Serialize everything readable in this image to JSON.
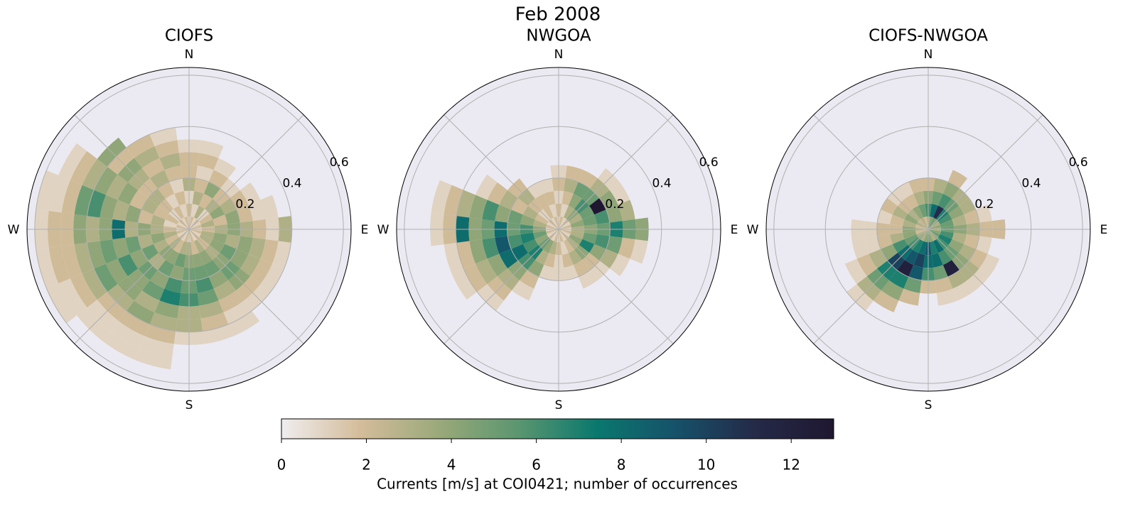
{
  "figure": {
    "title": "Feb 2008",
    "colorbar": {
      "label": "Currents [m/s] at COI0421; number of occurrences",
      "clim": [
        0,
        13
      ],
      "ticks": [
        0,
        2,
        4,
        6,
        8,
        10,
        12
      ],
      "colormap": [
        "#efedef",
        "#d4bc9a",
        "#9aa97a",
        "#5b9670",
        "#0a786e",
        "#16516a",
        "#242a48",
        "#1f1730"
      ]
    }
  },
  "chart_data": [
    {
      "type": "polar-histogram",
      "title": "CIOFS",
      "rlim": [
        0,
        0.63
      ],
      "rticks": [
        0.2,
        0.4,
        0.6
      ],
      "theta_grid": [
        0,
        45,
        90,
        135,
        180,
        225,
        270,
        315
      ],
      "theta_labels": [
        {
          "value": 0,
          "label": "N"
        },
        {
          "value": 90,
          "label": "E"
        },
        {
          "value": 180,
          "label": "S"
        },
        {
          "value": 270,
          "label": "W"
        }
      ],
      "directions": [
        0,
        15,
        30,
        45,
        60,
        75,
        90,
        105,
        120,
        135,
        150,
        165,
        180,
        195,
        210,
        225,
        240,
        255,
        270,
        285,
        300,
        315,
        330,
        345
      ],
      "speed_bins": [
        0,
        0.05,
        0.1,
        0.15,
        0.2,
        0.25,
        0.3,
        0.35,
        0.4,
        0.45,
        0.5,
        0.55,
        0.6
      ],
      "counts": [
        [
          1,
          2,
          1,
          3,
          2,
          2,
          1,
          null,
          null,
          null,
          null,
          null
        ],
        [
          2,
          1,
          3,
          2,
          1,
          2,
          1,
          null,
          null,
          null,
          null,
          null
        ],
        [
          1,
          3,
          2,
          4,
          2,
          1,
          null,
          null,
          null,
          null,
          null,
          null
        ],
        [
          2,
          1,
          3,
          2,
          1,
          null,
          null,
          null,
          null,
          null,
          null,
          null
        ],
        [
          1,
          2,
          4,
          3,
          2,
          1,
          null,
          null,
          null,
          null,
          null,
          null
        ],
        [
          2,
          3,
          2,
          4,
          2,
          1,
          1,
          null,
          null,
          null,
          null,
          null
        ],
        [
          1,
          2,
          3,
          4,
          3,
          2,
          1,
          3,
          null,
          null,
          null,
          null
        ],
        [
          2,
          3,
          4,
          3,
          4,
          3,
          2,
          1,
          null,
          null,
          null,
          null
        ],
        [
          1,
          3,
          4,
          5,
          4,
          3,
          2,
          1,
          null,
          null,
          null,
          null
        ],
        [
          2,
          2,
          3,
          4,
          5,
          4,
          2,
          1,
          null,
          null,
          null,
          null
        ],
        [
          1,
          3,
          4,
          5,
          4,
          3,
          2,
          1,
          1,
          null,
          null,
          null
        ],
        [
          2,
          2,
          4,
          5,
          6,
          5,
          3,
          2,
          1,
          null,
          null,
          null
        ],
        [
          1,
          3,
          4,
          5,
          5,
          6,
          3,
          3,
          1,
          null,
          null,
          null
        ],
        [
          2,
          3,
          5,
          4,
          6,
          7,
          4,
          3,
          2,
          1,
          1,
          null
        ],
        [
          1,
          2,
          4,
          5,
          4,
          5,
          3,
          4,
          2,
          1,
          1,
          null
        ],
        [
          2,
          3,
          4,
          3,
          5,
          4,
          4,
          3,
          2,
          1,
          1,
          null
        ],
        [
          1,
          2,
          3,
          5,
          4,
          6,
          4,
          5,
          3,
          2,
          1,
          1
        ],
        [
          2,
          3,
          4,
          3,
          5,
          4,
          5,
          4,
          3,
          2,
          2,
          1
        ],
        [
          1,
          2,
          3,
          4,
          3,
          8,
          4,
          3,
          4,
          2,
          2,
          1
        ],
        [
          2,
          1,
          3,
          2,
          4,
          3,
          4,
          6,
          5,
          2,
          1,
          1
        ],
        [
          1,
          2,
          2,
          3,
          2,
          4,
          3,
          4,
          3,
          2,
          1,
          null
        ],
        [
          2,
          1,
          2,
          3,
          2,
          3,
          4,
          2,
          4,
          null,
          null,
          null
        ],
        [
          1,
          2,
          1,
          2,
          3,
          2,
          3,
          2,
          null,
          null,
          null,
          null
        ],
        [
          2,
          1,
          2,
          1,
          2,
          3,
          2,
          1,
          null,
          null,
          null,
          null
        ]
      ]
    },
    {
      "type": "polar-histogram",
      "title": "NWGOA",
      "rlim": [
        0,
        0.63
      ],
      "rticks": [
        0.2,
        0.4,
        0.6
      ],
      "theta_grid": [
        0,
        45,
        90,
        135,
        180,
        225,
        270,
        315
      ],
      "theta_labels": [
        {
          "value": 0,
          "label": "N"
        },
        {
          "value": 90,
          "label": "E"
        },
        {
          "value": 180,
          "label": "S"
        },
        {
          "value": 270,
          "label": "W"
        }
      ],
      "directions": [
        0,
        15,
        30,
        45,
        60,
        75,
        90,
        105,
        120,
        135,
        150,
        165,
        180,
        195,
        210,
        225,
        240,
        255,
        270,
        285,
        300,
        315,
        330,
        345
      ],
      "speed_bins": [
        0,
        0.05,
        0.1,
        0.15,
        0.2,
        0.25,
        0.3,
        0.35,
        0.4,
        0.45,
        0.5,
        0.55,
        0.6
      ],
      "counts": [
        [
          1,
          2,
          1,
          2,
          1,
          null,
          null,
          null,
          null,
          null,
          null,
          null
        ],
        [
          2,
          1,
          2,
          3,
          2,
          null,
          null,
          null,
          null,
          null,
          null,
          null
        ],
        [
          1,
          3,
          4,
          5,
          2,
          null,
          null,
          null,
          null,
          null,
          null,
          null
        ],
        [
          2,
          4,
          6,
          5,
          3,
          1,
          null,
          null,
          null,
          null,
          null,
          null
        ],
        [
          1,
          3,
          5,
          13,
          4,
          1,
          null,
          null,
          null,
          null,
          null,
          null
        ],
        [
          2,
          4,
          5,
          6,
          4,
          3,
          null,
          null,
          null,
          null,
          null,
          null
        ],
        [
          1,
          3,
          4,
          5,
          7,
          5,
          4,
          null,
          null,
          null,
          null,
          null
        ],
        [
          2,
          3,
          5,
          6,
          5,
          2,
          1,
          null,
          null,
          null,
          null,
          null
        ],
        [
          1,
          4,
          7,
          4,
          3,
          1,
          null,
          null,
          null,
          null,
          null,
          null
        ],
        [
          2,
          3,
          4,
          2,
          1,
          null,
          null,
          null,
          null,
          null,
          null,
          null
        ],
        [
          1,
          2,
          3,
          2,
          1,
          null,
          null,
          null,
          null,
          null,
          null,
          null
        ],
        [
          2,
          1,
          2,
          1,
          null,
          null,
          null,
          null,
          null,
          null,
          null,
          null
        ],
        [
          1,
          2,
          1,
          1,
          null,
          null,
          null,
          null,
          null,
          null,
          null,
          null
        ],
        [
          2,
          3,
          2,
          1,
          null,
          null,
          null,
          null,
          null,
          null,
          null,
          null
        ],
        [
          1,
          4,
          3,
          4,
          2,
          1,
          null,
          null,
          null,
          null,
          null,
          null
        ],
        [
          2,
          5,
          7,
          6,
          4,
          3,
          2,
          1,
          null,
          null,
          null,
          null
        ],
        [
          1,
          4,
          6,
          8,
          8,
          4,
          3,
          2,
          1,
          null,
          null,
          null
        ],
        [
          2,
          5,
          7,
          6,
          9,
          6,
          4,
          2,
          1,
          null,
          null,
          null
        ],
        [
          1,
          4,
          6,
          5,
          8,
          5,
          4,
          8,
          2,
          1,
          null,
          null
        ],
        [
          2,
          3,
          4,
          5,
          4,
          6,
          4,
          3,
          2,
          1,
          null,
          null
        ],
        [
          1,
          2,
          3,
          2,
          3,
          2,
          1,
          null,
          null,
          null,
          null,
          null
        ],
        [
          2,
          1,
          2,
          3,
          2,
          null,
          null,
          null,
          null,
          null,
          null,
          null
        ],
        [
          1,
          2,
          2,
          1,
          null,
          null,
          null,
          null,
          null,
          null,
          null,
          null
        ],
        [
          2,
          1,
          2,
          1,
          null,
          null,
          null,
          null,
          null,
          null,
          null,
          null
        ]
      ]
    },
    {
      "type": "polar-histogram",
      "title": "CIOFS-NWGOA",
      "rlim": [
        0,
        0.63
      ],
      "rticks": [
        0.2,
        0.4,
        0.6
      ],
      "theta_grid": [
        0,
        45,
        90,
        135,
        180,
        225,
        270,
        315
      ],
      "theta_labels": [
        {
          "value": 0,
          "label": "N"
        },
        {
          "value": 90,
          "label": "E"
        },
        {
          "value": 180,
          "label": "S"
        },
        {
          "value": 270,
          "label": "W"
        }
      ],
      "directions": [
        0,
        15,
        30,
        45,
        60,
        75,
        90,
        105,
        120,
        135,
        150,
        165,
        180,
        195,
        210,
        225,
        240,
        255,
        270,
        285,
        300,
        315,
        330,
        345
      ],
      "speed_bins": [
        0,
        0.05,
        0.1,
        0.15,
        0.2,
        0.25,
        0.3,
        0.35,
        0.4,
        0.45,
        0.5,
        0.55,
        0.6
      ],
      "counts": [
        [
          3,
          6,
          4,
          2,
          null,
          null,
          null,
          null,
          null,
          null,
          null,
          null
        ],
        [
          4,
          8,
          5,
          3,
          null,
          null,
          null,
          null,
          null,
          null,
          null,
          null
        ],
        [
          5,
          11,
          6,
          4,
          2,
          null,
          null,
          null,
          null,
          null,
          null,
          null
        ],
        [
          4,
          7,
          5,
          3,
          null,
          null,
          null,
          null,
          null,
          null,
          null,
          null
        ],
        [
          3,
          6,
          4,
          3,
          null,
          null,
          null,
          null,
          null,
          null,
          null,
          null
        ],
        [
          4,
          5,
          3,
          2,
          1,
          null,
          null,
          null,
          null,
          null,
          null,
          null
        ],
        [
          3,
          5,
          4,
          3,
          2,
          2,
          null,
          null,
          null,
          null,
          null,
          null
        ],
        [
          4,
          6,
          3,
          2,
          1,
          null,
          null,
          null,
          null,
          null,
          null,
          null
        ],
        [
          5,
          7,
          4,
          3,
          2,
          1,
          null,
          null,
          null,
          null,
          null,
          null
        ],
        [
          4,
          6,
          5,
          4,
          3,
          1,
          null,
          null,
          null,
          null,
          null,
          null
        ],
        [
          3,
          8,
          6,
          12,
          3,
          1,
          null,
          null,
          null,
          null,
          null,
          null
        ],
        [
          4,
          7,
          8,
          5,
          2,
          1,
          null,
          null,
          null,
          null,
          null,
          null
        ],
        [
          5,
          9,
          8,
          6,
          2,
          null,
          null,
          null,
          null,
          null,
          null,
          null
        ],
        [
          4,
          8,
          10,
          9,
          5,
          2,
          null,
          null,
          null,
          null,
          null,
          null
        ],
        [
          3,
          7,
          9,
          12,
          7,
          4,
          2,
          null,
          null,
          null,
          null,
          null
        ],
        [
          4,
          6,
          8,
          10,
          7,
          5,
          3,
          1,
          null,
          null,
          null,
          null
        ],
        [
          3,
          5,
          6,
          4,
          3,
          2,
          1,
          null,
          null,
          null,
          null,
          null
        ],
        [
          2,
          4,
          3,
          2,
          1,
          1,
          null,
          null,
          null,
          null,
          null,
          null
        ],
        [
          3,
          4,
          2,
          2,
          1,
          1,
          null,
          null,
          null,
          null,
          null,
          null
        ],
        [
          2,
          3,
          2,
          1,
          null,
          null,
          null,
          null,
          null,
          null,
          null,
          null
        ],
        [
          3,
          4,
          3,
          2,
          null,
          null,
          null,
          null,
          null,
          null,
          null,
          null
        ],
        [
          2,
          3,
          2,
          1,
          null,
          null,
          null,
          null,
          null,
          null,
          null,
          null
        ],
        [
          3,
          4,
          2,
          1,
          null,
          null,
          null,
          null,
          null,
          null,
          null,
          null
        ],
        [
          2,
          5,
          3,
          2,
          null,
          null,
          null,
          null,
          null,
          null,
          null,
          null
        ]
      ]
    }
  ]
}
